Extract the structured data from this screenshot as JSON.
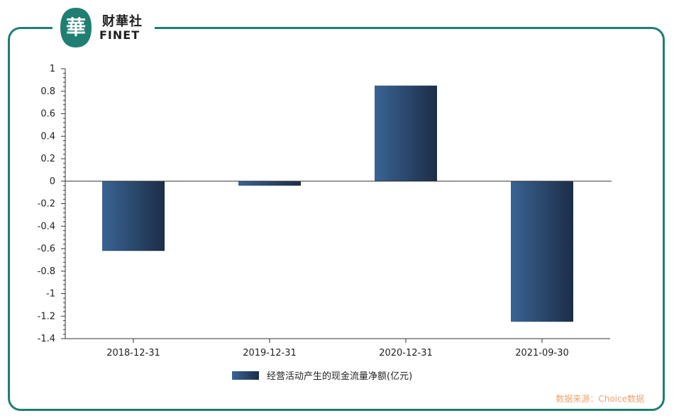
{
  "brand": {
    "name_cn": "财華社",
    "name_en": "FINET",
    "seal_char": "華",
    "color": "#1e7f72"
  },
  "source_note": "数据来源：Choice数据",
  "chart_data": {
    "type": "bar",
    "categories": [
      "2018-12-31",
      "2019-12-31",
      "2020-12-31",
      "2021-09-30"
    ],
    "series": [
      {
        "name": "经营活动产生的现金流量净额(亿元)",
        "values": [
          -0.62,
          -0.04,
          0.85,
          -1.25
        ]
      }
    ],
    "ylim": [
      -1.4,
      1
    ],
    "yticks": [
      1,
      0.8,
      0.6,
      0.4,
      0.2,
      0,
      -0.2,
      -0.4,
      -0.6,
      -0.8,
      -1,
      -1.2,
      -1.4
    ],
    "ytick_labels": [
      "1",
      "0.8",
      "0.6",
      "0.4",
      "0.2",
      "0",
      "-0.2",
      "-0.4",
      "-0.6",
      "-0.8",
      "-1",
      "-1.2",
      "-1.4"
    ],
    "grid": false,
    "legend_position": "bottom",
    "bar_color_light": "#3a6494",
    "bar_color_dark": "#1c2d47"
  }
}
